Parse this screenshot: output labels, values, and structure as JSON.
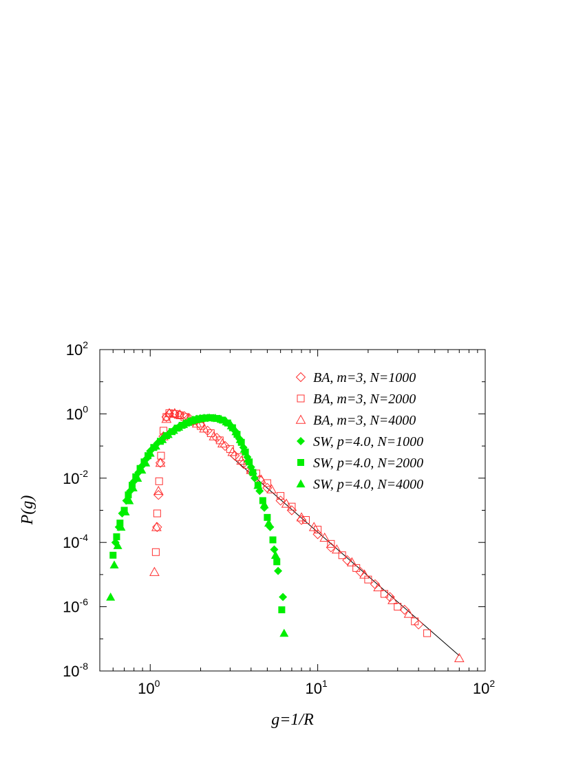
{
  "chart_data": {
    "type": "scatter",
    "title": "",
    "xlabel": "g=1/R",
    "ylabel": "P(g)",
    "xscale": "log",
    "yscale": "log",
    "xlim": [
      0.5,
      100
    ],
    "ylim": [
      1e-08,
      100
    ],
    "x_ticks": [
      {
        "base": "10",
        "exp": "0"
      },
      {
        "base": "10",
        "exp": "1"
      },
      {
        "base": "10",
        "exp": "2"
      }
    ],
    "y_ticks": [
      {
        "base": "10",
        "exp": "-8"
      },
      {
        "base": "10",
        "exp": "-6"
      },
      {
        "base": "10",
        "exp": "-4"
      },
      {
        "base": "10",
        "exp": "-2"
      },
      {
        "base": "10",
        "exp": "0"
      },
      {
        "base": "10",
        "exp": "2"
      }
    ],
    "grid": false,
    "legend_position": "top-right",
    "colors": {
      "ba": "#ff3030",
      "sw": "#00ee00",
      "fit": "#000000"
    },
    "series": [
      {
        "name": "BA, m=3, N=1000",
        "marker": "diamond-open",
        "color": "#ff3030",
        "x": [
          1.1,
          1.12,
          1.15,
          1.2,
          1.25,
          1.3,
          1.4,
          1.5,
          1.6,
          1.7,
          1.8,
          2.0,
          2.2,
          2.5,
          2.8,
          3.2,
          3.6,
          4.0,
          4.5,
          5.0,
          6.0,
          7.0,
          8.0,
          10.0,
          12.0,
          15.0,
          18.0,
          22.0,
          27.0,
          33.0,
          40.0
        ],
        "y": [
          0.0003,
          0.003,
          0.03,
          0.2,
          0.8,
          1.0,
          1.0,
          0.95,
          0.85,
          0.75,
          0.6,
          0.45,
          0.3,
          0.18,
          0.1,
          0.05,
          0.028,
          0.016,
          0.009,
          0.005,
          0.002,
          0.001,
          0.0005,
          0.00018,
          7e-05,
          2.8e-05,
          1.2e-05,
          5e-06,
          2e-06,
          8e-07,
          2.8e-07
        ]
      },
      {
        "name": "BA, m=3, N=2000",
        "marker": "square-open",
        "color": "#ff3030",
        "x": [
          1.08,
          1.1,
          1.13,
          1.16,
          1.2,
          1.25,
          1.3,
          1.4,
          1.5,
          1.6,
          1.8,
          2.0,
          2.3,
          2.6,
          3.0,
          3.4,
          3.8,
          4.3,
          5.0,
          6.0,
          7.0,
          8.5,
          10.0,
          12.0,
          14.0,
          17.0,
          20.0,
          25.0,
          30.0,
          38.0,
          45.0
        ],
        "y": [
          5e-05,
          0.0008,
          0.008,
          0.05,
          0.3,
          0.8,
          1.05,
          1.0,
          0.9,
          0.8,
          0.6,
          0.42,
          0.25,
          0.15,
          0.08,
          0.045,
          0.026,
          0.014,
          0.007,
          0.0028,
          0.0013,
          0.0005,
          0.00025,
          9e-05,
          4e-05,
          1.6e-05,
          7e-06,
          2.5e-06,
          1e-06,
          3.5e-07,
          1.5e-07
        ]
      },
      {
        "name": "BA, m=3, N=4000",
        "marker": "triangle-open",
        "color": "#ff3030",
        "x": [
          1.06,
          1.09,
          1.12,
          1.15,
          1.2,
          1.25,
          1.3,
          1.4,
          1.5,
          1.7,
          1.9,
          2.1,
          2.4,
          2.7,
          3.1,
          3.5,
          4.0,
          4.6,
          5.3,
          6.5,
          8.0,
          9.5,
          11.0,
          13.0,
          16.0,
          19.0,
          23.0,
          28.0,
          35.0,
          70.0
        ],
        "y": [
          1.2e-05,
          0.0003,
          0.004,
          0.03,
          0.2,
          0.7,
          1.05,
          1.05,
          0.95,
          0.7,
          0.5,
          0.35,
          0.2,
          0.12,
          0.065,
          0.035,
          0.018,
          0.009,
          0.0045,
          0.0016,
          0.0006,
          0.0003,
          0.00014,
          6e-05,
          2.4e-05,
          1e-05,
          4e-06,
          1.6e-06,
          6e-07,
          2.5e-08
        ]
      },
      {
        "name": "SW, p=4.0, N=1000",
        "marker": "diamond-filled",
        "color": "#00ee00",
        "x": [
          0.62,
          0.65,
          0.68,
          0.72,
          0.76,
          0.8,
          0.85,
          0.9,
          0.95,
          1.0,
          1.1,
          1.2,
          1.3,
          1.4,
          1.5,
          1.6,
          1.7,
          1.8,
          1.9,
          2.0,
          2.1,
          2.2,
          2.4,
          2.6,
          2.8,
          3.0,
          3.2,
          3.4,
          3.6,
          3.8,
          4.0,
          4.2,
          4.5,
          4.8,
          5.2,
          5.5,
          5.8,
          6.2
        ],
        "y": [
          0.0001,
          0.0003,
          0.0008,
          0.002,
          0.004,
          0.008,
          0.015,
          0.025,
          0.04,
          0.07,
          0.12,
          0.18,
          0.25,
          0.33,
          0.42,
          0.5,
          0.58,
          0.65,
          0.7,
          0.72,
          0.74,
          0.75,
          0.74,
          0.7,
          0.6,
          0.45,
          0.3,
          0.17,
          0.09,
          0.045,
          0.022,
          0.01,
          0.004,
          0.0012,
          0.0003,
          6e-05,
          1.3e-05,
          2e-06
        ]
      },
      {
        "name": "SW, p=4.0, N=2000",
        "marker": "square-filled",
        "color": "#00ee00",
        "x": [
          0.6,
          0.63,
          0.66,
          0.7,
          0.74,
          0.78,
          0.82,
          0.87,
          0.92,
          0.97,
          1.05,
          1.15,
          1.25,
          1.35,
          1.45,
          1.55,
          1.65,
          1.75,
          1.85,
          1.95,
          2.05,
          2.15,
          2.3,
          2.5,
          2.7,
          2.9,
          3.1,
          3.3,
          3.5,
          3.7,
          3.9,
          4.1,
          4.4,
          4.7,
          5.0,
          5.4,
          5.7,
          6.1
        ],
        "y": [
          4e-05,
          0.00015,
          0.0004,
          0.001,
          0.003,
          0.006,
          0.011,
          0.02,
          0.032,
          0.05,
          0.09,
          0.14,
          0.21,
          0.28,
          0.36,
          0.44,
          0.52,
          0.6,
          0.66,
          0.7,
          0.73,
          0.75,
          0.76,
          0.72,
          0.64,
          0.52,
          0.37,
          0.23,
          0.13,
          0.065,
          0.032,
          0.015,
          0.006,
          0.002,
          0.0006,
          0.00012,
          2.5e-05,
          8e-07
        ]
      },
      {
        "name": "SW, p=4.0, N=4000",
        "marker": "triangle-filled",
        "color": "#00ee00",
        "x": [
          0.58,
          0.61,
          0.64,
          0.67,
          0.71,
          0.75,
          0.79,
          0.84,
          0.89,
          0.94,
          1.0,
          1.08,
          1.18,
          1.28,
          1.38,
          1.48,
          1.58,
          1.68,
          1.78,
          1.88,
          1.98,
          2.1,
          2.25,
          2.45,
          2.65,
          2.85,
          3.05,
          3.25,
          3.45,
          3.65,
          3.85,
          4.1,
          4.4,
          4.8,
          5.1,
          5.6,
          6.3
        ],
        "y": [
          2e-06,
          2e-05,
          8e-05,
          0.0003,
          0.0009,
          0.002,
          0.005,
          0.01,
          0.018,
          0.03,
          0.06,
          0.1,
          0.16,
          0.23,
          0.31,
          0.39,
          0.47,
          0.55,
          0.62,
          0.67,
          0.71,
          0.74,
          0.76,
          0.74,
          0.68,
          0.57,
          0.43,
          0.28,
          0.16,
          0.08,
          0.04,
          0.017,
          0.006,
          0.0015,
          0.0004,
          4e-05,
          1.5e-07
        ]
      }
    ],
    "fit_line": {
      "x": [
        3.0,
        70.0
      ],
      "y": [
        0.05,
        3e-08
      ]
    }
  }
}
